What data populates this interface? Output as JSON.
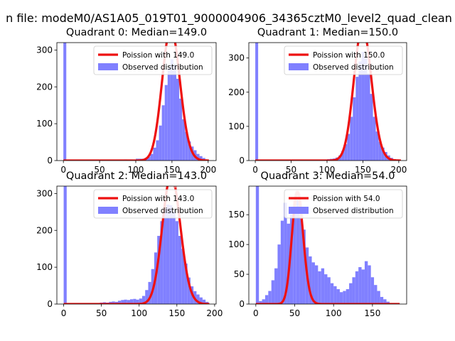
{
  "suptitle": "n file: modeM0/AS1A05_019T01_9000004906_34365cztM0_level2_quad_clean",
  "colors": {
    "hist": "#8080ff",
    "poisson": "#ee1111",
    "poisson_peak": "#f5a0a0"
  },
  "chart_data": [
    {
      "type": "bar",
      "title": "Quadrant 0: Median=149.0",
      "xlim": [
        -9,
        211
      ],
      "ylim": [
        0,
        320
      ],
      "xticks": [
        0,
        50,
        100,
        150,
        200
      ],
      "yticks": [
        0,
        100,
        200,
        300
      ],
      "legend": [
        "Poission with 149.0",
        "Observed distribution"
      ],
      "legend_position": "top-right",
      "median": 149,
      "poisson_x_range": [
        0,
        201
      ],
      "poisson_scale": 11000,
      "bin_width": 4,
      "bins": [
        [
          0,
          320
        ],
        [
          68,
          2
        ],
        [
          76,
          2
        ],
        [
          84,
          3
        ],
        [
          92,
          3
        ],
        [
          100,
          5
        ],
        [
          104,
          5
        ],
        [
          108,
          5
        ],
        [
          112,
          7
        ],
        [
          116,
          10
        ],
        [
          120,
          18
        ],
        [
          124,
          35
        ],
        [
          128,
          55
        ],
        [
          132,
          95
        ],
        [
          136,
          150
        ],
        [
          140,
          205
        ],
        [
          144,
          250
        ],
        [
          148,
          275
        ],
        [
          152,
          262
        ],
        [
          156,
          222
        ],
        [
          160,
          168
        ],
        [
          164,
          112
        ],
        [
          168,
          78
        ],
        [
          172,
          52
        ],
        [
          176,
          38
        ],
        [
          180,
          28
        ],
        [
          184,
          18
        ],
        [
          188,
          12
        ],
        [
          192,
          7
        ],
        [
          196,
          3
        ]
      ]
    },
    {
      "type": "bar",
      "title": "Quadrant 1: Median=150.0",
      "xlim": [
        -9,
        211
      ],
      "ylim": [
        0,
        345
      ],
      "xticks": [
        0,
        50,
        100,
        150,
        200
      ],
      "yticks": [
        0,
        100,
        200,
        300
      ],
      "legend": [
        "Poission with 150.0",
        "Observed distribution"
      ],
      "legend_position": "top-right",
      "median": 150,
      "poisson_x_range": [
        0,
        203
      ],
      "poisson_scale": 12000,
      "bin_width": 4,
      "bins": [
        [
          0,
          345
        ],
        [
          80,
          2
        ],
        [
          88,
          3
        ],
        [
          96,
          3
        ],
        [
          100,
          4
        ],
        [
          104,
          5
        ],
        [
          108,
          6
        ],
        [
          112,
          9
        ],
        [
          116,
          15
        ],
        [
          120,
          28
        ],
        [
          124,
          48
        ],
        [
          128,
          78
        ],
        [
          132,
          128
        ],
        [
          136,
          185
        ],
        [
          140,
          245
        ],
        [
          144,
          290
        ],
        [
          148,
          318
        ],
        [
          152,
          300
        ],
        [
          156,
          255
        ],
        [
          160,
          195
        ],
        [
          164,
          128
        ],
        [
          168,
          85
        ],
        [
          172,
          55
        ],
        [
          176,
          38
        ],
        [
          180,
          25
        ],
        [
          184,
          15
        ],
        [
          188,
          8
        ],
        [
          192,
          4
        ]
      ]
    },
    {
      "type": "bar",
      "title": "Quadrant 2: Median=143.0",
      "xlim": [
        -9,
        202
      ],
      "ylim": [
        0,
        320
      ],
      "xticks": [
        0,
        50,
        100,
        150,
        200
      ],
      "yticks": [
        0,
        100,
        200,
        300
      ],
      "legend": [
        "Poission with 143.0",
        "Observed distribution"
      ],
      "legend_position": "top-right",
      "median": 143,
      "poisson_x_range": [
        0,
        193
      ],
      "poisson_scale": 10500,
      "bin_width": 4,
      "bins": [
        [
          0,
          320
        ],
        [
          40,
          2
        ],
        [
          48,
          4
        ],
        [
          52,
          5
        ],
        [
          56,
          4
        ],
        [
          60,
          6
        ],
        [
          64,
          7
        ],
        [
          68,
          6
        ],
        [
          72,
          9
        ],
        [
          76,
          11
        ],
        [
          80,
          12
        ],
        [
          84,
          11
        ],
        [
          88,
          13
        ],
        [
          92,
          14
        ],
        [
          96,
          12
        ],
        [
          100,
          15
        ],
        [
          104,
          22
        ],
        [
          108,
          38
        ],
        [
          112,
          60
        ],
        [
          116,
          95
        ],
        [
          120,
          140
        ],
        [
          124,
          185
        ],
        [
          128,
          225
        ],
        [
          132,
          260
        ],
        [
          136,
          270
        ],
        [
          140,
          268
        ],
        [
          144,
          255
        ],
        [
          148,
          225
        ],
        [
          152,
          185
        ],
        [
          156,
          150
        ],
        [
          160,
          110
        ],
        [
          164,
          72
        ],
        [
          168,
          48
        ],
        [
          172,
          35
        ],
        [
          176,
          26
        ],
        [
          180,
          18
        ],
        [
          184,
          12
        ],
        [
          188,
          6
        ]
      ]
    },
    {
      "type": "bar",
      "title": "Quadrant 3: Median=54.0",
      "xlim": [
        -9,
        194
      ],
      "ylim": [
        0,
        198
      ],
      "xticks": [
        0,
        50,
        100,
        150
      ],
      "yticks": [
        0,
        50,
        100,
        150
      ],
      "legend": [
        "Poission with 54.0",
        "Observed distribution"
      ],
      "legend_position": "top-right",
      "median": 54,
      "poisson_x_range": [
        0,
        185
      ],
      "poisson_scale": 3460,
      "bin_width": 4,
      "bins": [
        [
          0,
          198
        ],
        [
          4,
          5
        ],
        [
          8,
          8
        ],
        [
          12,
          15
        ],
        [
          16,
          22
        ],
        [
          20,
          40
        ],
        [
          24,
          60
        ],
        [
          28,
          100
        ],
        [
          32,
          140
        ],
        [
          36,
          170
        ],
        [
          40,
          135
        ],
        [
          44,
          150
        ],
        [
          48,
          160
        ],
        [
          52,
          175
        ],
        [
          56,
          150
        ],
        [
          60,
          125
        ],
        [
          64,
          95
        ],
        [
          68,
          80
        ],
        [
          72,
          70
        ],
        [
          76,
          65
        ],
        [
          80,
          55
        ],
        [
          84,
          60
        ],
        [
          88,
          50
        ],
        [
          92,
          45
        ],
        [
          96,
          35
        ],
        [
          100,
          30
        ],
        [
          104,
          25
        ],
        [
          108,
          20
        ],
        [
          112,
          22
        ],
        [
          116,
          25
        ],
        [
          120,
          35
        ],
        [
          124,
          45
        ],
        [
          128,
          55
        ],
        [
          132,
          62
        ],
        [
          136,
          58
        ],
        [
          140,
          72
        ],
        [
          144,
          65
        ],
        [
          148,
          45
        ],
        [
          152,
          32
        ],
        [
          156,
          22
        ],
        [
          160,
          12
        ],
        [
          164,
          8
        ],
        [
          168,
          4
        ]
      ]
    }
  ]
}
